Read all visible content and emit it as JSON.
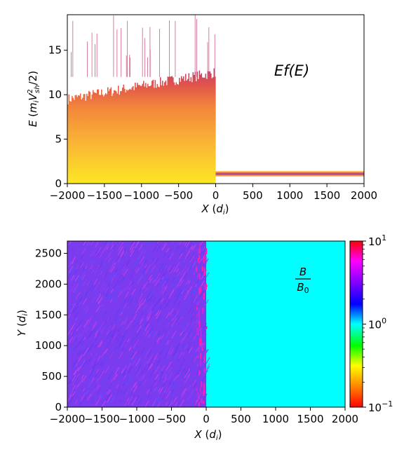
{
  "chart_data": [
    {
      "type": "heatmap",
      "xlabel": "X (d_i)",
      "ylabel": "E (m_i V_sh^2 / 2)",
      "xlim": [
        -2000,
        2000
      ],
      "ylim": [
        0,
        19
      ],
      "x_ticks": [
        -2000,
        -1500,
        -1000,
        -500,
        0,
        500,
        1000,
        1500,
        2000
      ],
      "x_tick_labels": [
        "−2000",
        "−1500",
        "−1000",
        "−500",
        "0",
        "500",
        "1000",
        "1500",
        "2000"
      ],
      "y_ticks": [
        0,
        5,
        10,
        15
      ],
      "y_tick_labels": [
        "0",
        "5",
        "10",
        "15"
      ],
      "annotation": "Ef(E)",
      "colormap": [
        "#fde724",
        "#f9b336",
        "#f3863a",
        "#e1564b",
        "#c43c6a",
        "#9b2f7e"
      ],
      "regions": {
        "downstream": {
          "x_range": [
            -2000,
            0
          ],
          "e_max_typical": 12.5,
          "e_max_spikes": 19
        },
        "upstream": {
          "x_range": [
            0,
            2000
          ],
          "e_band": [
            0.8,
            1.4
          ]
        }
      }
    },
    {
      "type": "heatmap",
      "xlabel": "X (d_i)",
      "ylabel": "Y (d_i)",
      "xlim": [
        -2000,
        2000
      ],
      "ylim": [
        0,
        2700
      ],
      "x_ticks": [
        -2000,
        -1500,
        -1000,
        -500,
        0,
        500,
        1000,
        1500,
        2000
      ],
      "x_tick_labels": [
        "−2000",
        "−1500",
        "−1000",
        "−500",
        "0",
        "500",
        "1000",
        "1500",
        "2000"
      ],
      "y_ticks": [
        0,
        500,
        1000,
        1500,
        2000,
        2500
      ],
      "y_tick_labels": [
        "0",
        "500",
        "1000",
        "1500",
        "2000",
        "2500"
      ],
      "annotation_numerator": "B",
      "annotation_denominator": "B0",
      "colorbar": {
        "scale": "log",
        "range": [
          0.1,
          10
        ],
        "tick_labels": [
          {
            "base": "10",
            "exp": "1"
          },
          {
            "base": "10",
            "exp": "0"
          },
          {
            "base": "10",
            "exp": "−1"
          }
        ],
        "colors": [
          "#ff0000",
          "#ff8000",
          "#ffff00",
          "#00ff00",
          "#00ffff",
          "#0000ff",
          "#8000ff",
          "#ff00ff",
          "#ff0000"
        ]
      },
      "regions": {
        "downstream": {
          "x_range": [
            -2000,
            0
          ],
          "value_typical": 3,
          "color": "#7b3cf0"
        },
        "upstream": {
          "x_range": [
            0,
            2000
          ],
          "value": 1,
          "color": "#00ffff"
        }
      }
    }
  ]
}
